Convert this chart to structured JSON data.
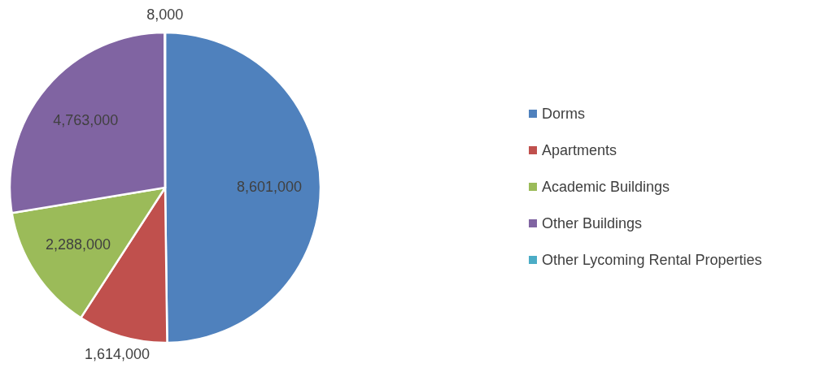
{
  "chart_data": {
    "type": "pie",
    "categories": [
      "Dorms",
      "Apartments",
      "Academic Buildings",
      "Other Buildings",
      "Other Lycoming Rental Properties"
    ],
    "values": [
      8601000,
      1614000,
      2288000,
      4763000,
      8000
    ],
    "colors": [
      "#4f81bd",
      "#c0504d",
      "#9bbb59",
      "#8064a2",
      "#4bacc6"
    ],
    "value_labels": [
      "8,601,000",
      "1,614,000",
      "2,288,000",
      "4,763,000",
      "8,000"
    ],
    "legend": "right"
  }
}
